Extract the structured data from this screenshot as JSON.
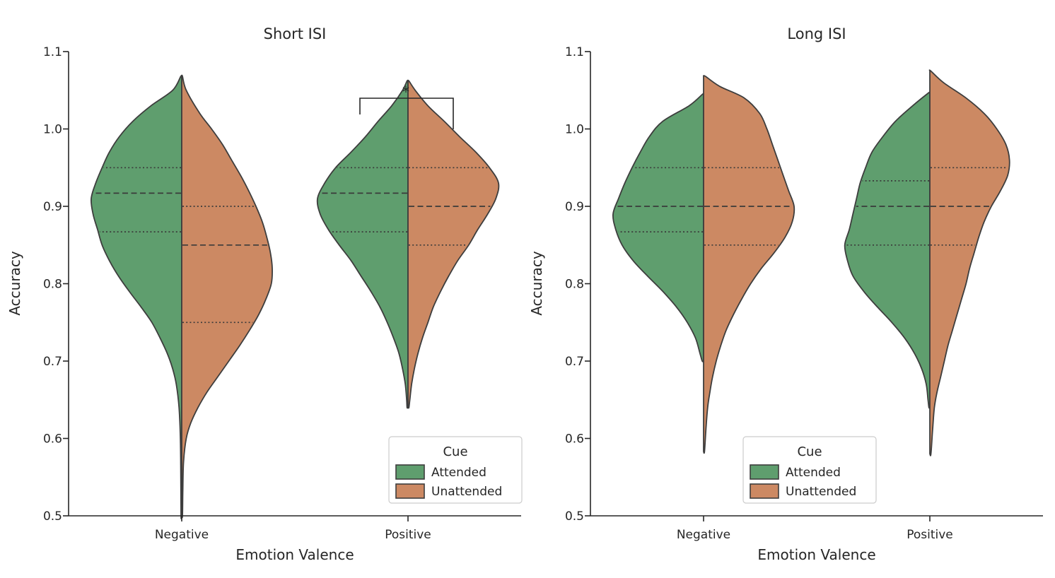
{
  "figure": {
    "background": "#ffffff"
  },
  "colors": {
    "attended": "#5f9e6e",
    "unattended": "#cc8963",
    "edge": "#3d3d3d",
    "quartile": "#3a3a3a",
    "spine": "#262626",
    "legend_border": "#cccccc"
  },
  "legend": {
    "title": "Cue",
    "items": [
      {
        "label": "Attended",
        "color_key": "attended"
      },
      {
        "label": "Unattended",
        "color_key": "unattended"
      }
    ]
  },
  "chart_data": [
    {
      "type": "violin",
      "split": true,
      "title": "Short ISI",
      "xlabel": "Emotion Valence",
      "ylabel": "Accuracy",
      "ylim": [
        0.5,
        1.1
      ],
      "yticks": [
        0.5,
        0.6,
        0.7,
        0.8,
        0.9,
        1.0,
        1.1
      ],
      "yticklabels": [
        "0.5",
        "0.6",
        "0.7",
        "0.8",
        "0.9",
        "1.0",
        "1.1"
      ],
      "categories": [
        "Negative",
        "Positive"
      ],
      "series": [
        {
          "name": "Attended",
          "side": "left",
          "color": "#5f9e6e"
        },
        {
          "name": "Unattended",
          "side": "right",
          "color": "#cc8963"
        }
      ],
      "significance": {
        "category": "Positive",
        "between": [
          "Attended",
          "Unattended"
        ],
        "label": "*"
      },
      "violins": [
        {
          "category": "Negative",
          "cue": "Attended",
          "q1": 0.867,
          "median": 0.917,
          "q3": 0.95,
          "profile": [
            [
              1.068,
              0.01
            ],
            [
              1.05,
              0.1
            ],
            [
              1.03,
              0.34
            ],
            [
              1.01,
              0.54
            ],
            [
              0.99,
              0.69
            ],
            [
              0.97,
              0.8
            ],
            [
              0.95,
              0.88
            ],
            [
              0.93,
              0.95
            ],
            [
              0.91,
              1.0
            ],
            [
              0.89,
              0.98
            ],
            [
              0.87,
              0.93
            ],
            [
              0.85,
              0.88
            ],
            [
              0.83,
              0.8
            ],
            [
              0.81,
              0.7
            ],
            [
              0.79,
              0.58
            ],
            [
              0.77,
              0.45
            ],
            [
              0.75,
              0.33
            ],
            [
              0.73,
              0.24
            ],
            [
              0.71,
              0.16
            ],
            [
              0.69,
              0.1
            ],
            [
              0.67,
              0.06
            ],
            [
              0.64,
              0.03
            ],
            [
              0.6,
              0.015
            ],
            [
              0.55,
              0.01
            ],
            [
              0.5,
              0.008
            ]
          ]
        },
        {
          "category": "Negative",
          "cue": "Unattended",
          "q1": 0.75,
          "median": 0.85,
          "q3": 0.9,
          "profile": [
            [
              1.068,
              0.008
            ],
            [
              1.05,
              0.05
            ],
            [
              1.02,
              0.2
            ],
            [
              1.0,
              0.33
            ],
            [
              0.98,
              0.45
            ],
            [
              0.96,
              0.55
            ],
            [
              0.94,
              0.65
            ],
            [
              0.92,
              0.74
            ],
            [
              0.9,
              0.82
            ],
            [
              0.88,
              0.89
            ],
            [
              0.86,
              0.94
            ],
            [
              0.84,
              0.98
            ],
            [
              0.82,
              1.0
            ],
            [
              0.8,
              0.99
            ],
            [
              0.78,
              0.93
            ],
            [
              0.76,
              0.85
            ],
            [
              0.74,
              0.75
            ],
            [
              0.72,
              0.64
            ],
            [
              0.7,
              0.52
            ],
            [
              0.68,
              0.4
            ],
            [
              0.66,
              0.28
            ],
            [
              0.64,
              0.18
            ],
            [
              0.62,
              0.1
            ],
            [
              0.6,
              0.05
            ],
            [
              0.57,
              0.02
            ],
            [
              0.53,
              0.012
            ],
            [
              0.5,
              0.008
            ]
          ]
        },
        {
          "category": "Positive",
          "cue": "Attended",
          "q1": 0.867,
          "median": 0.917,
          "q3": 0.95,
          "profile": [
            [
              1.062,
              0.01
            ],
            [
              1.05,
              0.06
            ],
            [
              1.03,
              0.18
            ],
            [
              1.01,
              0.33
            ],
            [
              0.99,
              0.47
            ],
            [
              0.97,
              0.63
            ],
            [
              0.95,
              0.8
            ],
            [
              0.93,
              0.92
            ],
            [
              0.91,
              1.0
            ],
            [
              0.89,
              0.97
            ],
            [
              0.87,
              0.88
            ],
            [
              0.85,
              0.76
            ],
            [
              0.83,
              0.63
            ],
            [
              0.81,
              0.52
            ],
            [
              0.79,
              0.41
            ],
            [
              0.77,
              0.31
            ],
            [
              0.75,
              0.23
            ],
            [
              0.73,
              0.16
            ],
            [
              0.71,
              0.1
            ],
            [
              0.69,
              0.06
            ],
            [
              0.67,
              0.03
            ],
            [
              0.65,
              0.015
            ],
            [
              0.64,
              0.01
            ]
          ]
        },
        {
          "category": "Positive",
          "cue": "Unattended",
          "q1": 0.85,
          "median": 0.9,
          "q3": 0.95,
          "profile": [
            [
              1.062,
              0.01
            ],
            [
              1.05,
              0.08
            ],
            [
              1.03,
              0.22
            ],
            [
              1.01,
              0.4
            ],
            [
              0.99,
              0.57
            ],
            [
              0.97,
              0.75
            ],
            [
              0.95,
              0.9
            ],
            [
              0.93,
              1.0
            ],
            [
              0.91,
              0.97
            ],
            [
              0.89,
              0.88
            ],
            [
              0.87,
              0.77
            ],
            [
              0.85,
              0.67
            ],
            [
              0.83,
              0.55
            ],
            [
              0.81,
              0.45
            ],
            [
              0.79,
              0.36
            ],
            [
              0.77,
              0.28
            ],
            [
              0.75,
              0.22
            ],
            [
              0.73,
              0.16
            ],
            [
              0.71,
              0.11
            ],
            [
              0.69,
              0.07
            ],
            [
              0.67,
              0.04
            ],
            [
              0.65,
              0.02
            ],
            [
              0.64,
              0.01
            ]
          ]
        }
      ]
    },
    {
      "type": "violin",
      "split": true,
      "title": "Long ISI",
      "xlabel": "Emotion Valence",
      "ylabel": "Accuracy",
      "ylim": [
        0.5,
        1.1
      ],
      "yticks": [
        0.5,
        0.6,
        0.7,
        0.8,
        0.9,
        1.0,
        1.1
      ],
      "yticklabels": [
        "0.5",
        "0.6",
        "0.7",
        "0.8",
        "0.9",
        "1.0",
        "1.1"
      ],
      "categories": [
        "Negative",
        "Positive"
      ],
      "series": [
        {
          "name": "Attended",
          "side": "left",
          "color": "#5f9e6e"
        },
        {
          "name": "Unattended",
          "side": "right",
          "color": "#cc8963"
        }
      ],
      "significance": null,
      "violins": [
        {
          "category": "Negative",
          "cue": "Attended",
          "q1": 0.867,
          "median": 0.9,
          "q3": 0.95,
          "profile": [
            [
              1.045,
              0.01
            ],
            [
              1.03,
              0.16
            ],
            [
              1.01,
              0.45
            ],
            [
              0.99,
              0.6
            ],
            [
              0.97,
              0.7
            ],
            [
              0.95,
              0.79
            ],
            [
              0.93,
              0.87
            ],
            [
              0.91,
              0.94
            ],
            [
              0.89,
              1.0
            ],
            [
              0.87,
              0.97
            ],
            [
              0.85,
              0.9
            ],
            [
              0.83,
              0.78
            ],
            [
              0.81,
              0.62
            ],
            [
              0.79,
              0.45
            ],
            [
              0.77,
              0.3
            ],
            [
              0.75,
              0.18
            ],
            [
              0.73,
              0.09
            ],
            [
              0.71,
              0.04
            ],
            [
              0.7,
              0.015
            ]
          ]
        },
        {
          "category": "Negative",
          "cue": "Unattended",
          "q1": 0.85,
          "median": 0.9,
          "q3": 0.95,
          "profile": [
            [
              1.068,
              0.02
            ],
            [
              1.055,
              0.18
            ],
            [
              1.04,
              0.45
            ],
            [
              1.02,
              0.62
            ],
            [
              1.0,
              0.7
            ],
            [
              0.98,
              0.76
            ],
            [
              0.96,
              0.82
            ],
            [
              0.94,
              0.88
            ],
            [
              0.92,
              0.94
            ],
            [
              0.9,
              1.0
            ],
            [
              0.88,
              0.98
            ],
            [
              0.86,
              0.9
            ],
            [
              0.84,
              0.78
            ],
            [
              0.82,
              0.64
            ],
            [
              0.8,
              0.52
            ],
            [
              0.78,
              0.42
            ],
            [
              0.76,
              0.33
            ],
            [
              0.74,
              0.25
            ],
            [
              0.72,
              0.19
            ],
            [
              0.7,
              0.14
            ],
            [
              0.68,
              0.1
            ],
            [
              0.66,
              0.07
            ],
            [
              0.64,
              0.045
            ],
            [
              0.61,
              0.025
            ],
            [
              0.583,
              0.01
            ]
          ]
        },
        {
          "category": "Positive",
          "cue": "Attended",
          "q1": 0.85,
          "median": 0.9,
          "q3": 0.933,
          "profile": [
            [
              1.047,
              0.01
            ],
            [
              1.03,
              0.19
            ],
            [
              1.01,
              0.38
            ],
            [
              0.99,
              0.52
            ],
            [
              0.97,
              0.64
            ],
            [
              0.95,
              0.71
            ],
            [
              0.93,
              0.77
            ],
            [
              0.91,
              0.81
            ],
            [
              0.89,
              0.85
            ],
            [
              0.87,
              0.89
            ],
            [
              0.85,
              0.94
            ],
            [
              0.83,
              0.91
            ],
            [
              0.81,
              0.85
            ],
            [
              0.79,
              0.73
            ],
            [
              0.77,
              0.58
            ],
            [
              0.75,
              0.42
            ],
            [
              0.73,
              0.28
            ],
            [
              0.71,
              0.17
            ],
            [
              0.69,
              0.09
            ],
            [
              0.67,
              0.04
            ],
            [
              0.65,
              0.02
            ],
            [
              0.64,
              0.01
            ]
          ]
        },
        {
          "category": "Positive",
          "cue": "Unattended",
          "q1": 0.85,
          "median": 0.9,
          "q3": 0.95,
          "profile": [
            [
              1.075,
              0.01
            ],
            [
              1.06,
              0.15
            ],
            [
              1.04,
              0.4
            ],
            [
              1.02,
              0.6
            ],
            [
              1.0,
              0.74
            ],
            [
              0.98,
              0.84
            ],
            [
              0.96,
              0.88
            ],
            [
              0.94,
              0.86
            ],
            [
              0.92,
              0.78
            ],
            [
              0.9,
              0.68
            ],
            [
              0.88,
              0.6
            ],
            [
              0.86,
              0.54
            ],
            [
              0.84,
              0.49
            ],
            [
              0.82,
              0.44
            ],
            [
              0.8,
              0.4
            ],
            [
              0.78,
              0.35
            ],
            [
              0.76,
              0.3
            ],
            [
              0.74,
              0.25
            ],
            [
              0.72,
              0.2
            ],
            [
              0.7,
              0.16
            ],
            [
              0.68,
              0.12
            ],
            [
              0.66,
              0.08
            ],
            [
              0.64,
              0.05
            ],
            [
              0.61,
              0.03
            ],
            [
              0.58,
              0.012
            ]
          ]
        }
      ]
    }
  ]
}
